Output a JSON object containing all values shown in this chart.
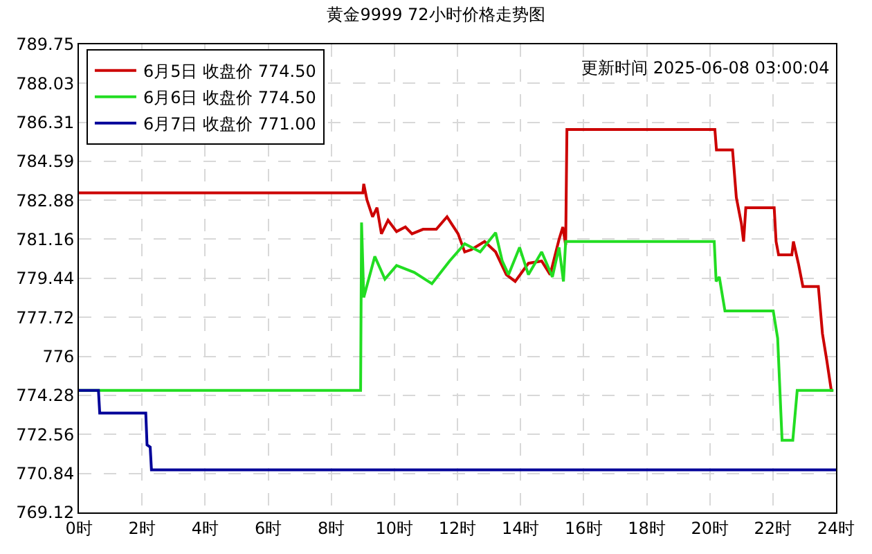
{
  "chart_data": {
    "type": "line",
    "title": "黄金9999 72小时价格走势图",
    "annotations": [
      "更新时间 2025-06-08 03:00:04"
    ],
    "xlim": [
      0,
      24
    ],
    "xticks": [
      {
        "value": 0,
        "label": "0时"
      },
      {
        "value": 2,
        "label": "2时"
      },
      {
        "value": 4,
        "label": "4时"
      },
      {
        "value": 6,
        "label": "6时"
      },
      {
        "value": 8,
        "label": "8时"
      },
      {
        "value": 10,
        "label": "10时"
      },
      {
        "value": 12,
        "label": "12时"
      },
      {
        "value": 14,
        "label": "14时"
      },
      {
        "value": 16,
        "label": "16时"
      },
      {
        "value": 18,
        "label": "18时"
      },
      {
        "value": 20,
        "label": "20时"
      },
      {
        "value": 22,
        "label": "22时"
      },
      {
        "value": 24,
        "label": "24时"
      }
    ],
    "ylim": [
      769.12,
      789.75
    ],
    "yticks": [
      769.12,
      770.84,
      772.56,
      774.28,
      776,
      777.72,
      779.44,
      781.16,
      782.88,
      784.59,
      786.31,
      788.03,
      789.75
    ],
    "grid": true,
    "legend": "top left",
    "marker": "none",
    "line_style": "solid",
    "series": [
      {
        "name": "6月5日 收盘价 774.50",
        "color": "#cc0000",
        "x": [
          0,
          9.0,
          9.03,
          9.13,
          9.31,
          9.45,
          9.59,
          9.8,
          10.07,
          10.35,
          10.56,
          10.91,
          11.33,
          11.67,
          12.02,
          12.23,
          12.44,
          12.86,
          13.21,
          13.55,
          13.83,
          14.25,
          14.67,
          14.94,
          15.22,
          15.34,
          15.43,
          15.47,
          20.16,
          20.21,
          20.72,
          20.84,
          21.0,
          21.07,
          21.14,
          22.04,
          22.1,
          22.18,
          22.6,
          22.65,
          22.81,
          22.95,
          23.44,
          23.57,
          23.71,
          23.85,
          23.9
        ],
        "values": [
          783.2,
          783.2,
          783.6,
          782.9,
          782.15,
          782.55,
          781.4,
          782.0,
          781.5,
          781.7,
          781.4,
          781.6,
          781.6,
          782.15,
          781.4,
          780.6,
          780.7,
          781.06,
          780.6,
          779.6,
          779.3,
          780.1,
          780.2,
          779.6,
          781.15,
          781.7,
          780.9,
          786.0,
          786.0,
          785.1,
          785.1,
          783.0,
          781.85,
          781.06,
          782.55,
          782.55,
          781.06,
          780.47,
          780.47,
          781.06,
          780.07,
          779.08,
          779.08,
          777.0,
          775.8,
          774.5,
          774.5
        ]
      },
      {
        "name": "6月6日 收盘价 774.50",
        "color": "#22dd22",
        "x": [
          0,
          8.93,
          8.96,
          9.03,
          9.38,
          9.7,
          10.07,
          10.63,
          11.19,
          11.75,
          12.23,
          12.72,
          13.21,
          13.42,
          13.62,
          13.97,
          14.25,
          14.67,
          15.01,
          15.22,
          15.36,
          15.43,
          20.14,
          20.2,
          20.3,
          20.48,
          22.01,
          22.15,
          22.29,
          22.63,
          22.77,
          23.92
        ],
        "values": [
          774.5,
          774.5,
          781.9,
          778.6,
          780.4,
          779.4,
          780.0,
          779.7,
          779.2,
          780.2,
          780.96,
          780.6,
          781.45,
          780.2,
          779.6,
          780.8,
          779.6,
          780.6,
          779.5,
          780.8,
          779.3,
          781.06,
          781.06,
          779.3,
          779.5,
          778.0,
          778.0,
          776.8,
          772.3,
          772.3,
          774.5,
          774.5
        ]
      },
      {
        "name": "6月7日 收盘价 771.00",
        "color": "#000099",
        "x": [
          0,
          0.62,
          0.66,
          2.12,
          2.16,
          2.26,
          2.3,
          24
        ],
        "values": [
          774.5,
          774.5,
          773.5,
          773.5,
          772.1,
          772.0,
          771.0,
          771.0
        ]
      }
    ]
  }
}
